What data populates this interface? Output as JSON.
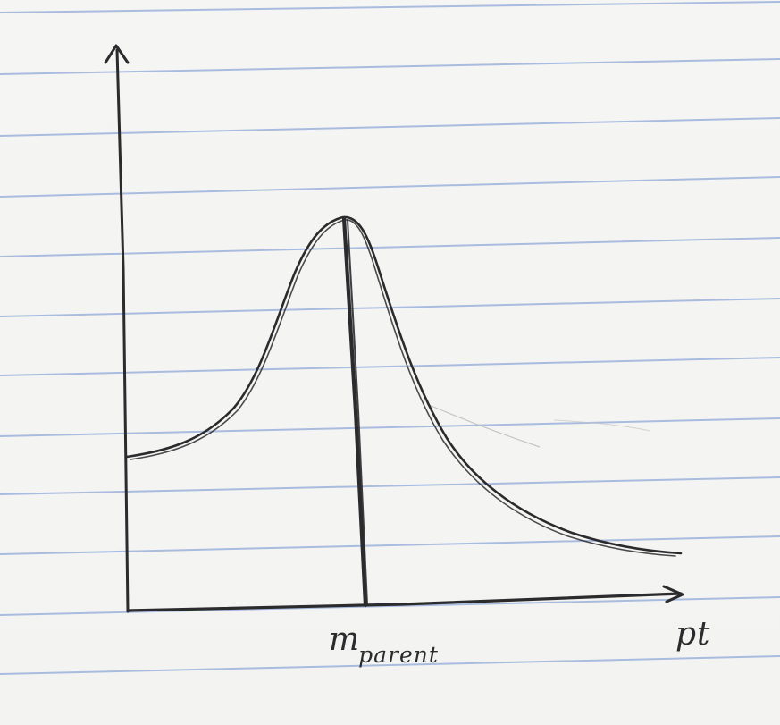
{
  "labels": {
    "marker_main": "m",
    "marker_sub": "parent",
    "x_axis": "pt"
  },
  "colors": {
    "ink": "#2b2b2d",
    "rule": "#9cb3dc",
    "paper": "#f4f4f2"
  }
}
